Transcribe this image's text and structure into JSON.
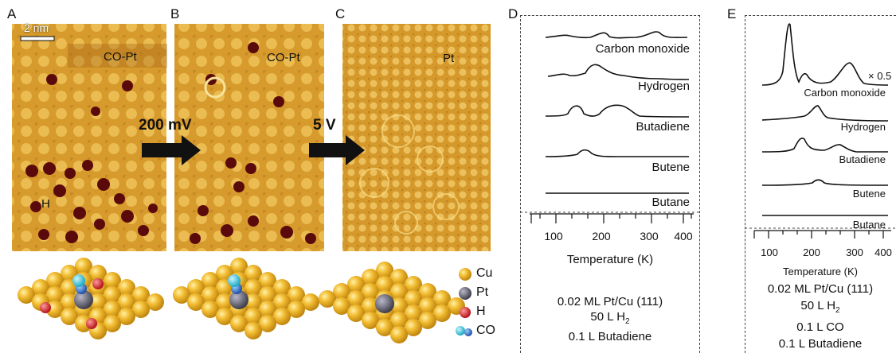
{
  "panels": {
    "a": {
      "letter": "A",
      "scale_bar": "2 nm",
      "label_copt": "CO-Pt",
      "label_h": "H"
    },
    "b": {
      "letter": "B",
      "label_copt": "CO-Pt"
    },
    "c": {
      "letter": "C",
      "label_pt": "Pt"
    },
    "arrow1": "200 mV",
    "arrow2": "5 V"
  },
  "legend": {
    "items": [
      {
        "label": "Cu",
        "color": "#e8b02c"
      },
      {
        "label": "Pt",
        "color": "#6b6b78"
      },
      {
        "label": "H",
        "color": "#d6262a"
      },
      {
        "label": "CO",
        "color": "#39c3d8"
      }
    ]
  },
  "chart_data": [
    {
      "type": "line",
      "panel": "D",
      "xlabel": "Temperature (K)",
      "xticks": [
        "100",
        "200",
        "300",
        "400"
      ],
      "xlim": [
        70,
        450
      ],
      "series": [
        {
          "name": "Carbon monoxide",
          "peaks_K": [
            210,
            360
          ]
        },
        {
          "name": "Hydrogen",
          "peaks_K": [
            235
          ]
        },
        {
          "name": "Butadiene",
          "peaks_K": [
            215,
            325
          ]
        },
        {
          "name": "Butene",
          "peaks_K": [
            230
          ]
        },
        {
          "name": "Butane",
          "peaks_K": []
        }
      ],
      "conditions": [
        "0.02 ML Pt/Cu (111)",
        "50 L H2",
        "0.1 L Butadiene"
      ]
    },
    {
      "type": "line",
      "panel": "E",
      "xlabel": "Temperature (K)",
      "xticks": [
        "100",
        "200",
        "300",
        "400"
      ],
      "xlim": [
        50,
        450
      ],
      "scale_note": "× 0.5",
      "series": [
        {
          "name": "Carbon monoxide",
          "peaks_K": [
            160,
            210,
            355
          ]
        },
        {
          "name": "Hydrogen",
          "peaks_K": [
            240
          ]
        },
        {
          "name": "Butadiene",
          "peaks_K": [
            210,
            330
          ]
        },
        {
          "name": "Butene",
          "peaks_K": [
            240
          ]
        },
        {
          "name": "Butane",
          "peaks_K": []
        }
      ],
      "conditions": [
        "0.02 ML Pt/Cu (111)",
        "50 L H2",
        "0.1 L CO",
        "0.1 L Butadiene"
      ]
    }
  ],
  "cond_d": {
    "line1": "0.02 ML Pt/Cu (111)",
    "line2_pre": "50 L H",
    "line2_sub": "2",
    "line3": "0.1 L Butadiene"
  },
  "cond_e": {
    "line1": "0.02 ML Pt/Cu (111)",
    "line2_pre": "50 L H",
    "line2_sub": "2",
    "line3": "0.1 L CO",
    "line4": "0.1 L Butadiene"
  }
}
